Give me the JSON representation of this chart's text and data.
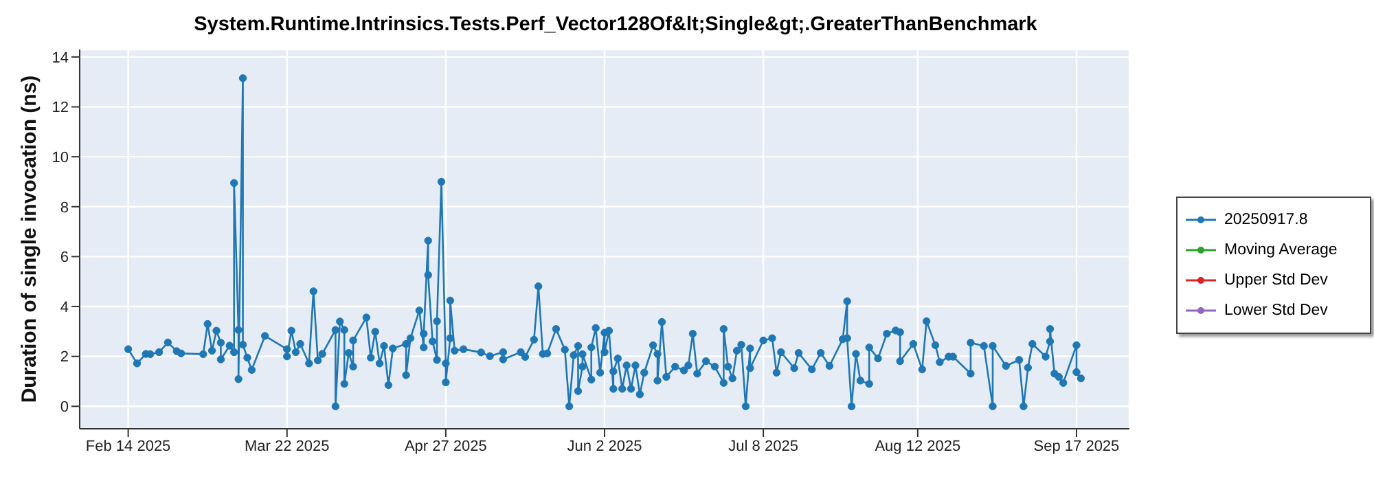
{
  "chart_data": {
    "type": "line",
    "title": "System.Runtime.Intrinsics.Tests.Perf_Vector128Of&lt;Single&gt;.GreaterThanBenchmark",
    "ylabel": "Duration of single invocation (ns)",
    "xlim": [
      "2025-02-03",
      "2025-09-29"
    ],
    "xticks": [
      {
        "value": "2025-02-14",
        "label": "Feb 14 2025"
      },
      {
        "value": "2025-03-22",
        "label": "Mar 22 2025"
      },
      {
        "value": "2025-04-27",
        "label": "Apr 27 2025"
      },
      {
        "value": "2025-06-02",
        "label": "Jun 2 2025"
      },
      {
        "value": "2025-07-08",
        "label": "Jul 8 2025"
      },
      {
        "value": "2025-08-12",
        "label": "Aug 12 2025"
      },
      {
        "value": "2025-09-17",
        "label": "Sep 17 2025"
      }
    ],
    "ylim": [
      -0.9,
      14.3
    ],
    "yticks": [
      0,
      2,
      4,
      6,
      8,
      10,
      12,
      14
    ],
    "grid": true,
    "legend": "right",
    "marker": "circle",
    "line_style": "solid",
    "series": [
      {
        "name": "20250917.8",
        "color": "#1f77b4",
        "x": [
          "2025-02-14",
          "2025-02-16",
          "2025-02-18",
          "2025-02-19",
          "2025-02-21",
          "2025-02-23",
          "2025-02-25",
          "2025-02-26",
          "2025-03-03",
          "2025-03-04",
          "2025-03-05",
          "2025-03-06",
          "2025-03-07",
          "2025-03-07",
          "2025-03-09",
          "2025-03-10",
          "2025-03-10",
          "2025-03-11",
          "2025-03-11",
          "2025-03-12",
          "2025-03-12",
          "2025-03-13",
          "2025-03-14",
          "2025-03-17",
          "2025-03-22",
          "2025-03-22",
          "2025-03-23",
          "2025-03-24",
          "2025-03-25",
          "2025-03-27",
          "2025-03-28",
          "2025-03-29",
          "2025-03-30",
          "2025-04-02",
          "2025-04-02",
          "2025-04-03",
          "2025-04-04",
          "2025-04-04",
          "2025-04-05",
          "2025-04-06",
          "2025-04-06",
          "2025-04-09",
          "2025-04-10",
          "2025-04-11",
          "2025-04-12",
          "2025-04-13",
          "2025-04-14",
          "2025-04-15",
          "2025-04-18",
          "2025-04-18",
          "2025-04-19",
          "2025-04-21",
          "2025-04-22",
          "2025-04-22",
          "2025-04-23",
          "2025-04-23",
          "2025-04-24",
          "2025-04-25",
          "2025-04-25",
          "2025-04-26",
          "2025-04-27",
          "2025-04-27",
          "2025-04-28",
          "2025-04-28",
          "2025-04-29",
          "2025-05-01",
          "2025-05-05",
          "2025-05-07",
          "2025-05-10",
          "2025-05-10",
          "2025-05-14",
          "2025-05-15",
          "2025-05-17",
          "2025-05-18",
          "2025-05-19",
          "2025-05-20",
          "2025-05-22",
          "2025-05-24",
          "2025-05-25",
          "2025-05-26",
          "2025-05-27",
          "2025-05-27",
          "2025-05-28",
          "2025-05-28",
          "2025-05-30",
          "2025-05-30",
          "2025-05-31",
          "2025-06-01",
          "2025-06-02",
          "2025-06-02",
          "2025-06-03",
          "2025-06-04",
          "2025-06-04",
          "2025-06-05",
          "2025-06-06",
          "2025-06-07",
          "2025-06-08",
          "2025-06-09",
          "2025-06-10",
          "2025-06-11",
          "2025-06-13",
          "2025-06-14",
          "2025-06-14",
          "2025-06-15",
          "2025-06-16",
          "2025-06-18",
          "2025-06-20",
          "2025-06-21",
          "2025-06-22",
          "2025-06-23",
          "2025-06-25",
          "2025-06-27",
          "2025-06-29",
          "2025-06-29",
          "2025-06-30",
          "2025-07-01",
          "2025-07-02",
          "2025-07-03",
          "2025-07-04",
          "2025-07-05",
          "2025-07-05",
          "2025-07-08",
          "2025-07-10",
          "2025-07-11",
          "2025-07-12",
          "2025-07-15",
          "2025-07-16",
          "2025-07-19",
          "2025-07-21",
          "2025-07-23",
          "2025-07-26",
          "2025-07-27",
          "2025-07-27",
          "2025-07-28",
          "2025-07-29",
          "2025-07-30",
          "2025-08-01",
          "2025-08-01",
          "2025-08-03",
          "2025-08-05",
          "2025-08-07",
          "2025-08-08",
          "2025-08-08",
          "2025-08-11",
          "2025-08-13",
          "2025-08-14",
          "2025-08-16",
          "2025-08-17",
          "2025-08-19",
          "2025-08-20",
          "2025-08-24",
          "2025-08-24",
          "2025-08-27",
          "2025-08-29",
          "2025-08-29",
          "2025-09-01",
          "2025-09-04",
          "2025-09-05",
          "2025-09-06",
          "2025-09-07",
          "2025-09-10",
          "2025-09-11",
          "2025-09-11",
          "2025-09-12",
          "2025-09-13",
          "2025-09-14",
          "2025-09-17",
          "2025-09-17",
          "2025-09-18"
        ],
        "values": [
          2.29,
          1.72,
          2.1,
          2.09,
          2.17,
          2.56,
          2.21,
          2.12,
          2.09,
          3.3,
          2.23,
          3.03,
          2.55,
          1.88,
          2.43,
          2.17,
          8.95,
          3.06,
          1.09,
          13.15,
          2.47,
          1.95,
          1.46,
          2.82,
          2.29,
          2.0,
          3.03,
          2.17,
          2.5,
          1.72,
          4.61,
          1.84,
          2.1,
          3.06,
          0,
          3.4,
          3.06,
          0.9,
          2.14,
          1.59,
          2.64,
          3.56,
          1.95,
          2.99,
          1.72,
          2.42,
          0.85,
          2.32,
          2.5,
          1.25,
          2.73,
          3.84,
          2.36,
          2.91,
          6.64,
          5.26,
          2.6,
          1.86,
          3.41,
          9.0,
          1.72,
          0.96,
          2.73,
          4.24,
          2.23,
          2.29,
          2.16,
          2.01,
          2.17,
          1.88,
          2.17,
          1.98,
          2.67,
          4.81,
          2.1,
          2.12,
          3.1,
          2.27,
          0,
          2.05,
          2.42,
          0.61,
          1.59,
          2.09,
          1.07,
          2.36,
          3.14,
          1.35,
          2.95,
          2.17,
          3.03,
          0.7,
          1.4,
          1.92,
          0.7,
          1.64,
          0.7,
          1.64,
          0.48,
          1.35,
          2.45,
          2.1,
          1.03,
          3.38,
          1.18,
          1.59,
          1.44,
          1.64,
          2.91,
          1.31,
          1.81,
          1.59,
          0.94,
          3.1,
          1.59,
          1.12,
          2.23,
          2.47,
          0,
          2.32,
          1.53,
          2.64,
          2.73,
          1.35,
          2.17,
          1.53,
          2.14,
          1.48,
          2.14,
          1.62,
          2.69,
          4.21,
          2.73,
          0,
          2.1,
          1.03,
          0.9,
          2.36,
          1.92,
          2.91,
          3.04,
          2.97,
          1.81,
          2.5,
          1.48,
          3.41,
          2.45,
          1.77,
          1.99,
          1.99,
          1.31,
          2.55,
          2.42,
          0,
          2.42,
          1.62,
          1.86,
          0,
          1.55,
          2.5,
          1.99,
          2.6,
          3.1,
          1.31,
          1.18,
          0.94,
          2.45,
          1.37,
          1.12
        ]
      },
      {
        "name": "Moving Average",
        "color": "#2ca02c"
      },
      {
        "name": "Upper Std Dev",
        "color": "#d62728"
      },
      {
        "name": "Lower Std Dev",
        "color": "#9467bd"
      }
    ]
  }
}
